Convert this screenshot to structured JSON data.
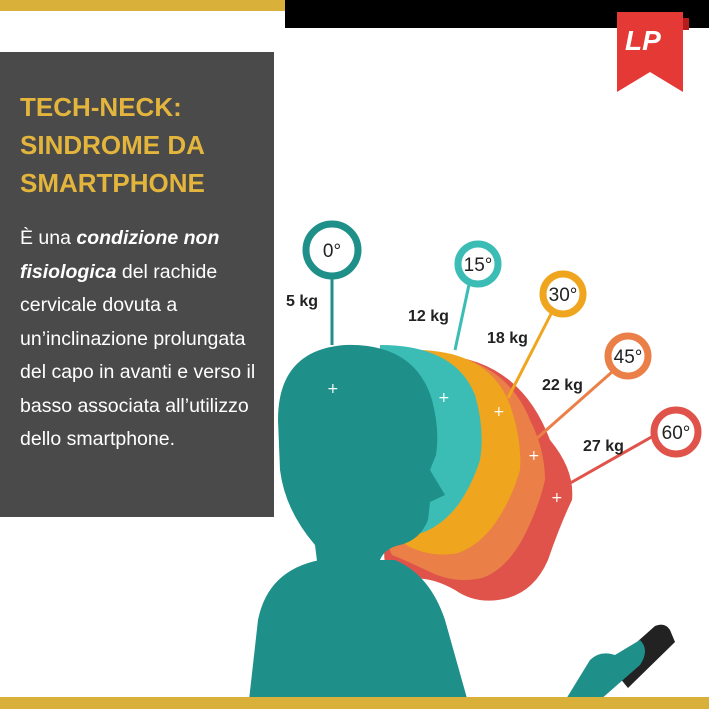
{
  "title": {
    "line1": "TECH-NECK:",
    "line2": "SINDROME DA",
    "line3": "SMARTPHONE"
  },
  "description": {
    "part1": "È una ",
    "emphasis1": "condizione non",
    "emphasis2": "fisiologica",
    "part2": "  del rachide cervicale dovuta a un’inclinazione prolungata del capo in avanti e verso il basso associata all’utilizzo dello smartphone."
  },
  "angles": [
    {
      "angle": "0°",
      "weight": "5 kg",
      "color": "#1e8f89"
    },
    {
      "angle": "15°",
      "weight": "12 kg",
      "color": "#3bbdb6"
    },
    {
      "angle": "30°",
      "weight": "18 kg",
      "color": "#f0a51e"
    },
    {
      "angle": "45°",
      "weight": "22 kg",
      "color": "#ea8047"
    },
    {
      "angle": "60°",
      "weight": "27 kg",
      "color": "#e0534b"
    }
  ],
  "logo_text": "LP",
  "colors": {
    "panel": "#4a4a4a",
    "gold": "#d9b13a",
    "teal": "#1e8f89",
    "logo_red": "#e53935"
  }
}
